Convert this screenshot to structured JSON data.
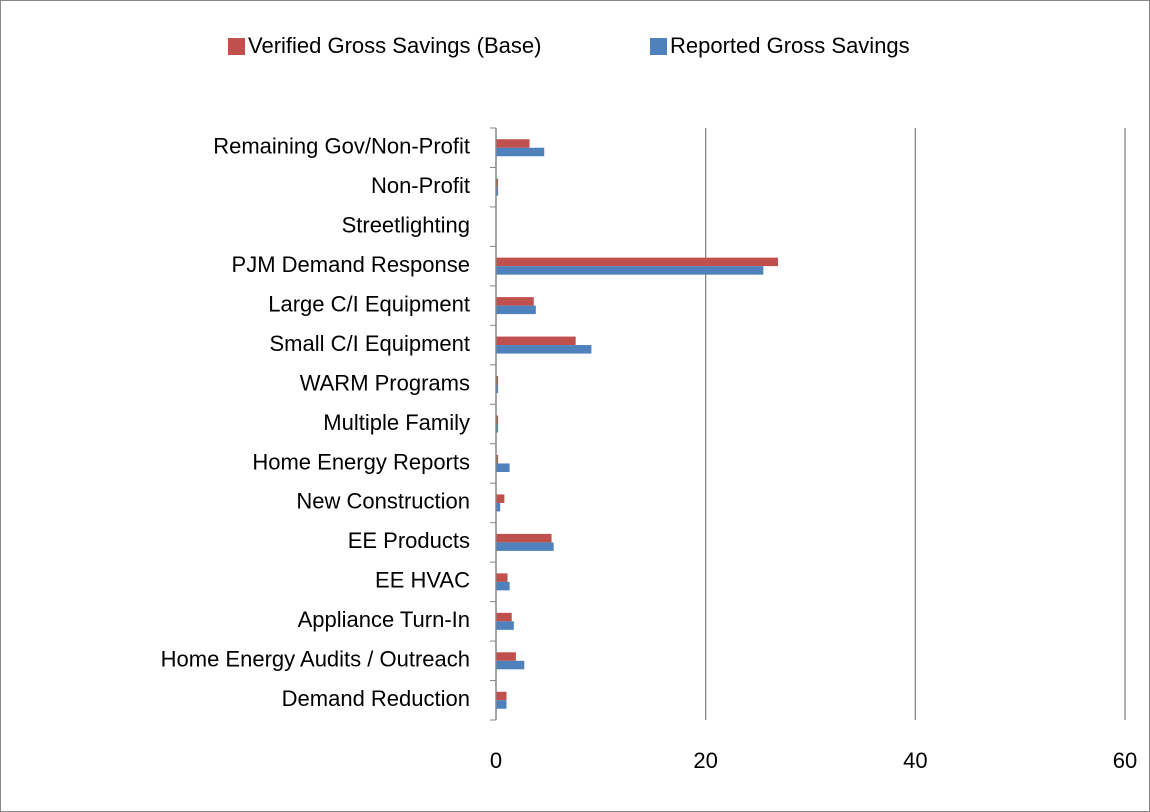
{
  "chart_data": {
    "type": "hbar",
    "categories": [
      "Remaining Gov/Non-Profit",
      "Non-Profit",
      "Streetlighting",
      "PJM Demand Response",
      "Large  C/I Equipment",
      "Small C/I Equipment",
      "WARM Programs",
      "Multiple Family",
      "Home Energy Reports",
      "New Construction",
      "EE Products",
      "EE HVAC",
      "Appliance Turn-In",
      "Home Energy Audits / Outreach",
      "Demand Reduction"
    ],
    "series": [
      {
        "name": "Verified Gross Savings (Base)",
        "color": "#c0504d",
        "values": [
          3.2,
          0.2,
          0,
          26.9,
          3.6,
          7.6,
          0.2,
          0.2,
          0.2,
          0.8,
          5.3,
          1.1,
          1.5,
          1.9,
          1.0
        ]
      },
      {
        "name": "Reported Gross Savings",
        "color": "#4f81bd",
        "values": [
          4.6,
          0.2,
          0,
          25.5,
          3.8,
          9.1,
          0.2,
          0.2,
          1.3,
          0.4,
          5.5,
          1.3,
          1.7,
          2.7,
          1.0
        ]
      }
    ],
    "xlim": [
      0,
      60
    ],
    "xticks": [
      0,
      20,
      40,
      60
    ],
    "grid": true,
    "legend": "top"
  }
}
